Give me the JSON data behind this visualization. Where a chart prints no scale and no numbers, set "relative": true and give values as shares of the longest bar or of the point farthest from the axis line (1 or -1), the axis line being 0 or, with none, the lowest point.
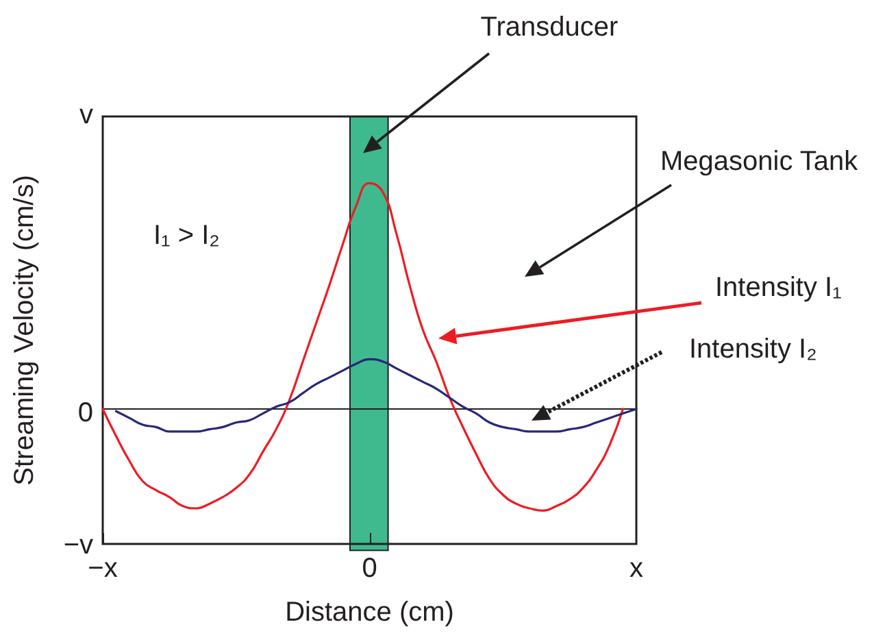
{
  "chart_data": {
    "type": "line",
    "relative": true,
    "xlabel": "Distance (cm)",
    "ylabel": "Streaming Velocity (cm/s)",
    "categories": [
      "−x",
      null,
      null,
      null,
      null,
      null,
      null,
      null,
      null,
      null,
      null,
      null,
      null,
      null,
      null,
      null,
      null,
      null,
      null,
      null,
      "0",
      null,
      null,
      null,
      null,
      null,
      null,
      null,
      null,
      null,
      null,
      null,
      null,
      null,
      null,
      null,
      null,
      null,
      null,
      null,
      "x"
    ],
    "series": [
      {
        "color": "#ed1c24",
        "values": [
          0,
          -0.12,
          -0.23,
          -0.32,
          -0.36,
          -0.39,
          -0.43,
          -0.44,
          -0.42,
          -0.39,
          -0.35,
          -0.29,
          -0.19,
          -0.09,
          0.04,
          0.21,
          0.38,
          0.55,
          0.73,
          0.9,
          1,
          0.96,
          0.78,
          0.55,
          0.35,
          0.21,
          0.05,
          -0.08,
          -0.2,
          -0.31,
          -0.38,
          -0.42,
          -0.44,
          -0.45,
          -0.43,
          -0.4,
          -0.35,
          -0.27,
          -0.16,
          0,
          null
        ]
      },
      {
        "color": "#26287a",
        "values": [
          null,
          -0.01,
          -0.04,
          -0.07,
          -0.08,
          -0.1,
          -0.1,
          -0.1,
          -0.09,
          -0.08,
          -0.06,
          -0.05,
          -0.02,
          0.01,
          0.03,
          0.07,
          0.11,
          0.14,
          0.17,
          0.2,
          0.22,
          0.21,
          0.18,
          0.15,
          0.12,
          0.09,
          0.05,
          0.01,
          -0.02,
          -0.06,
          -0.08,
          -0.09,
          -0.1,
          -0.1,
          -0.1,
          -0.09,
          -0.08,
          -0.06,
          -0.04,
          -0.02,
          0
        ]
      }
    ],
    "ref_lines": [
      {
        "axis": "y",
        "value": 0,
        "color": "#231f20"
      }
    ],
    "annotations": [
      "Transducer",
      "Megasonic Tank",
      "Intensity I₁",
      "Intensity I₂",
      "I₁ > I₂",
      "v",
      "0",
      "−v"
    ]
  }
}
